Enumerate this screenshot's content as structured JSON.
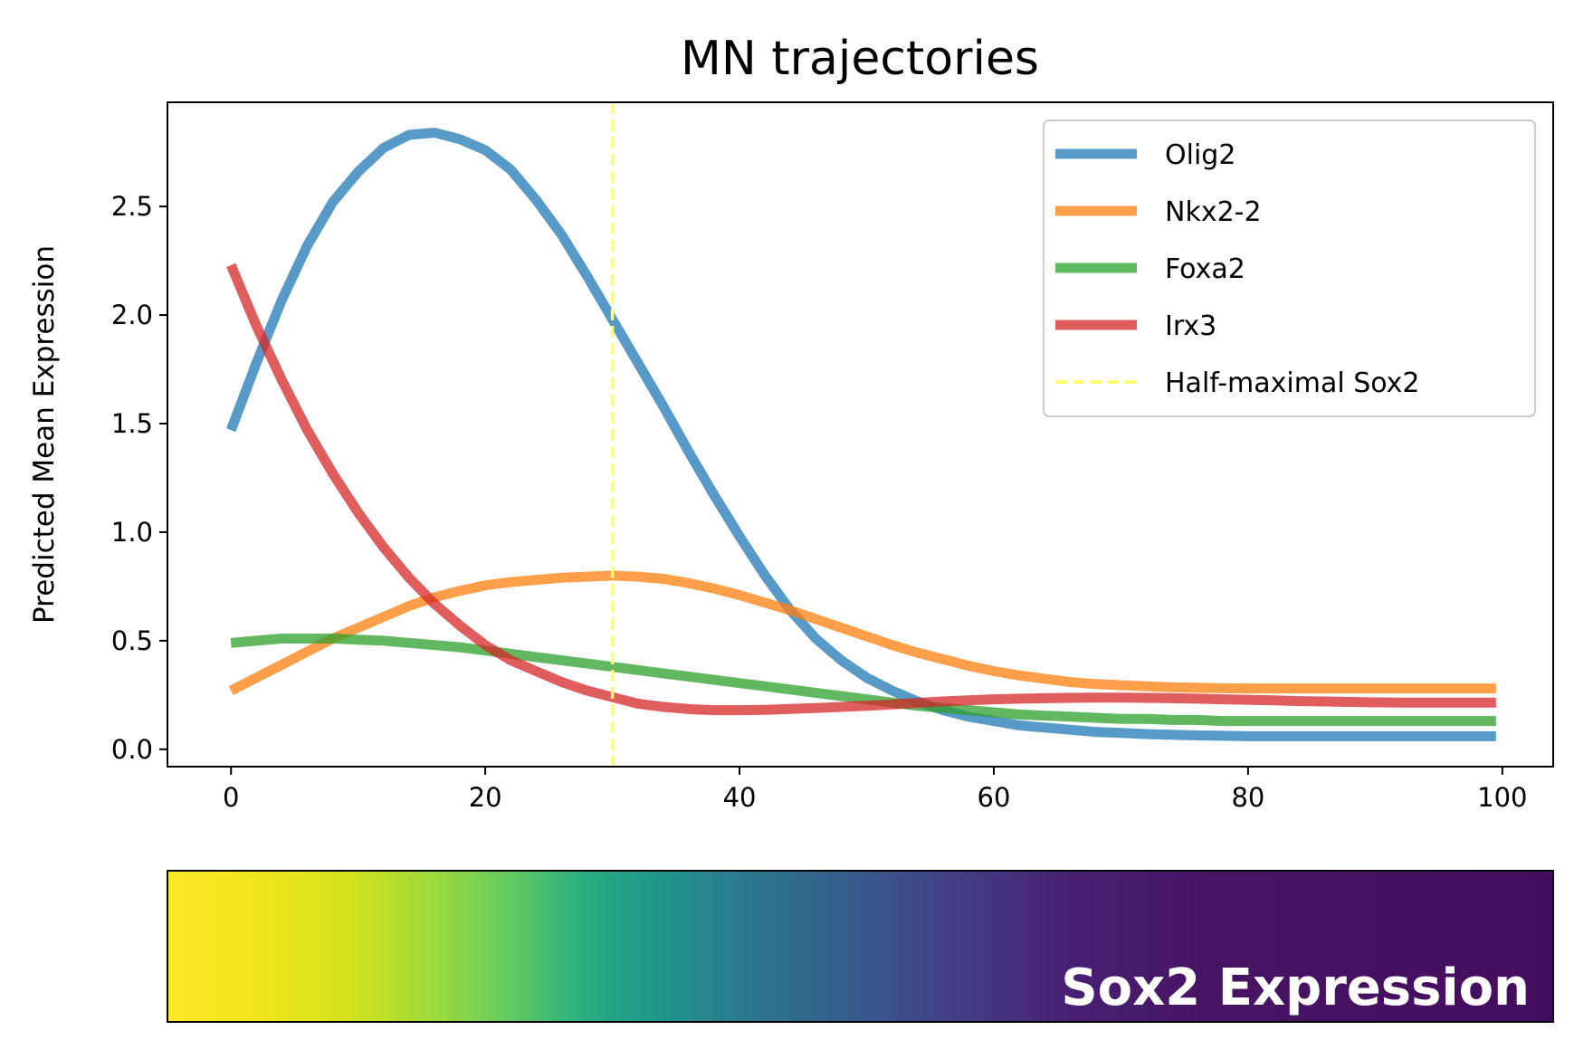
{
  "chart_data": {
    "type": "line",
    "title": "MN trajectories",
    "xlabel": "",
    "ylabel": "Predicted Mean Expression",
    "xlim": [
      -5,
      104
    ],
    "ylim": [
      -0.08,
      2.98
    ],
    "xticks": [
      0,
      20,
      40,
      60,
      80,
      100
    ],
    "yticks": [
      0.0,
      0.5,
      1.0,
      1.5,
      2.0,
      2.5
    ],
    "xtick_labels": [
      "0",
      "20",
      "40",
      "60",
      "80",
      "100"
    ],
    "ytick_labels": [
      "0.0",
      "0.5",
      "1.0",
      "1.5",
      "2.0",
      "2.5"
    ],
    "grid": false,
    "legend_position": "top-right",
    "x": [
      0,
      2,
      4,
      6,
      8,
      10,
      12,
      14,
      16,
      18,
      20,
      22,
      24,
      26,
      28,
      30,
      32,
      34,
      36,
      38,
      40,
      42,
      44,
      46,
      48,
      50,
      52,
      54,
      56,
      58,
      60,
      62,
      64,
      66,
      68,
      70,
      72,
      74,
      76,
      78,
      80,
      82,
      84,
      86,
      88,
      90,
      92,
      94,
      96,
      98,
      99.5
    ],
    "series": [
      {
        "name": "Olig2",
        "color": "#1f77b4",
        "values": [
          1.47,
          1.78,
          2.07,
          2.32,
          2.52,
          2.66,
          2.77,
          2.83,
          2.84,
          2.81,
          2.76,
          2.67,
          2.53,
          2.37,
          2.18,
          1.98,
          1.78,
          1.58,
          1.37,
          1.17,
          0.98,
          0.8,
          0.64,
          0.51,
          0.41,
          0.33,
          0.27,
          0.22,
          0.18,
          0.15,
          0.13,
          0.11,
          0.1,
          0.09,
          0.08,
          0.075,
          0.07,
          0.067,
          0.064,
          0.062,
          0.06,
          0.06,
          0.06,
          0.06,
          0.06,
          0.06,
          0.06,
          0.06,
          0.06,
          0.06,
          0.06
        ]
      },
      {
        "name": "Nkx2-2",
        "color": "#ff7f0e",
        "values": [
          0.27,
          0.33,
          0.39,
          0.45,
          0.51,
          0.56,
          0.61,
          0.66,
          0.7,
          0.73,
          0.755,
          0.77,
          0.78,
          0.79,
          0.795,
          0.8,
          0.795,
          0.785,
          0.765,
          0.74,
          0.71,
          0.675,
          0.64,
          0.6,
          0.56,
          0.52,
          0.48,
          0.445,
          0.415,
          0.385,
          0.36,
          0.34,
          0.325,
          0.31,
          0.3,
          0.295,
          0.29,
          0.285,
          0.283,
          0.281,
          0.28,
          0.28,
          0.28,
          0.28,
          0.28,
          0.28,
          0.28,
          0.28,
          0.28,
          0.28,
          0.28
        ]
      },
      {
        "name": "Foxa2",
        "color": "#2ca02c",
        "values": [
          0.49,
          0.5,
          0.51,
          0.51,
          0.51,
          0.505,
          0.5,
          0.49,
          0.48,
          0.47,
          0.455,
          0.44,
          0.425,
          0.41,
          0.395,
          0.38,
          0.365,
          0.35,
          0.335,
          0.32,
          0.305,
          0.29,
          0.275,
          0.26,
          0.245,
          0.23,
          0.215,
          0.2,
          0.19,
          0.18,
          0.17,
          0.16,
          0.155,
          0.15,
          0.145,
          0.14,
          0.14,
          0.135,
          0.135,
          0.13,
          0.13,
          0.13,
          0.13,
          0.13,
          0.13,
          0.13,
          0.13,
          0.13,
          0.13,
          0.13,
          0.13
        ]
      },
      {
        "name": "Irx3",
        "color": "#d62728",
        "values": [
          2.23,
          1.95,
          1.7,
          1.47,
          1.27,
          1.09,
          0.93,
          0.79,
          0.67,
          0.57,
          0.48,
          0.41,
          0.36,
          0.31,
          0.27,
          0.24,
          0.21,
          0.195,
          0.185,
          0.18,
          0.18,
          0.182,
          0.186,
          0.19,
          0.195,
          0.2,
          0.207,
          0.214,
          0.22,
          0.225,
          0.23,
          0.233,
          0.235,
          0.237,
          0.238,
          0.238,
          0.237,
          0.235,
          0.233,
          0.23,
          0.228,
          0.225,
          0.222,
          0.22,
          0.218,
          0.216,
          0.215,
          0.215,
          0.215,
          0.215,
          0.215
        ]
      }
    ],
    "vline": {
      "name": "Half-maximal Sox2",
      "x": 30,
      "color": "#ffff66",
      "style": "dashed"
    },
    "colorbar": {
      "label": "Sox2 Expression",
      "colormap": "viridis",
      "direction": "reversed (yellow on left, purple on right)"
    }
  }
}
